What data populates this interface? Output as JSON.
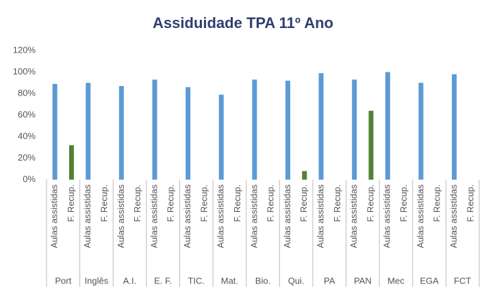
{
  "chart_data": {
    "type": "bar",
    "title": "Assiduidade TPA 11º Ano",
    "categories": [
      "Port",
      "Inglês",
      "A.I.",
      "E. F.",
      "TIC.",
      "Mat.",
      "Bio.",
      "Qui.",
      "PA",
      "PAN",
      "Mec",
      "EGA",
      "FCT"
    ],
    "series": [
      {
        "name": "Aulas assistidas",
        "color": "#5b9bd5",
        "values": [
          89,
          90,
          87,
          93,
          86,
          79,
          93,
          92,
          99,
          93,
          100,
          90,
          98
        ]
      },
      {
        "name": "F. Recup.",
        "color": "#548235",
        "values": [
          32,
          null,
          null,
          null,
          null,
          null,
          null,
          8,
          null,
          64,
          null,
          null,
          null
        ]
      }
    ],
    "ylim": [
      0,
      120
    ],
    "yticks": [
      {
        "value": 0,
        "label": "0%"
      },
      {
        "value": 20,
        "label": "20%"
      },
      {
        "value": 40,
        "label": "40%"
      },
      {
        "value": 60,
        "label": "60%"
      },
      {
        "value": 80,
        "label": "80%"
      },
      {
        "value": 100,
        "label": "100%"
      },
      {
        "value": 120,
        "label": "120%"
      }
    ]
  }
}
